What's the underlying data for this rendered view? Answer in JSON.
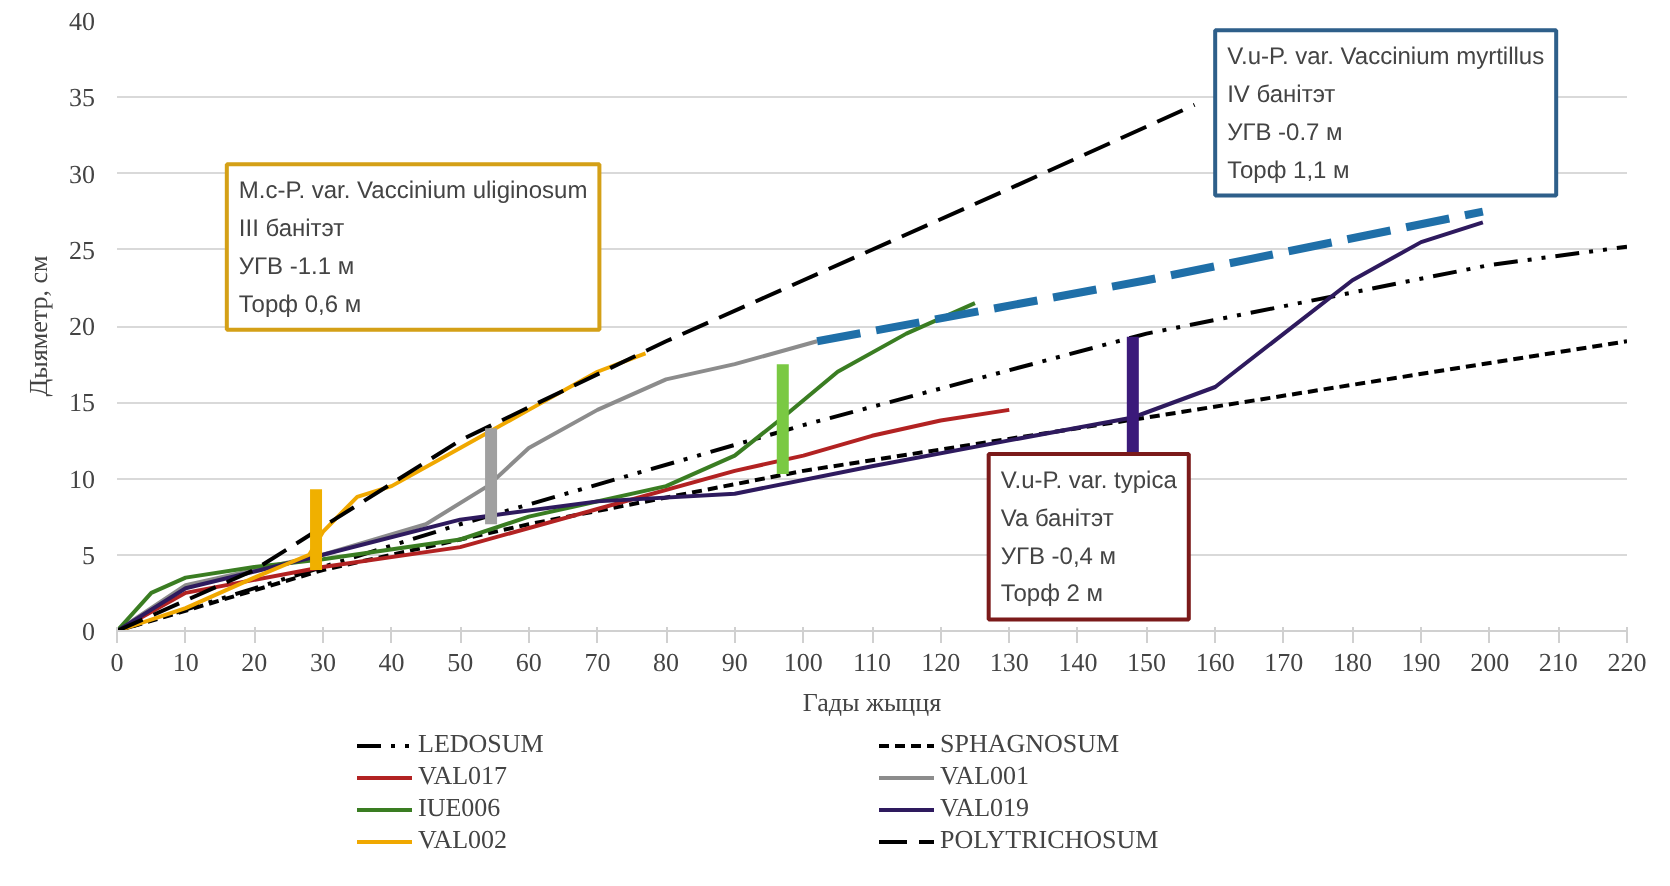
{
  "chart_data": {
    "type": "line",
    "xlabel": "Гады жыцця",
    "ylabel": "Дыяметр, см",
    "xlim": [
      0,
      220
    ],
    "xticks": [
      0,
      10,
      20,
      30,
      40,
      50,
      60,
      70,
      80,
      90,
      100,
      110,
      120,
      130,
      140,
      150,
      160,
      170,
      180,
      190,
      200,
      210,
      220
    ],
    "ylim": [
      0,
      40
    ],
    "yticks": [
      0,
      5,
      10,
      15,
      20,
      25,
      30,
      35,
      40
    ],
    "grid": "y",
    "legend": "bottom",
    "series": [
      {
        "name": "LEDOSUM",
        "color": "#000000",
        "line_style": "dashdot",
        "x": [
          0,
          50,
          100,
          150,
          200,
          220
        ],
        "values": [
          0,
          7,
          13.5,
          19.5,
          24,
          25.2
        ]
      },
      {
        "name": "SPHAGNOSUM",
        "color": "#000000",
        "line_style": "dotted",
        "x": [
          0,
          30,
          60,
          100,
          150,
          220
        ],
        "values": [
          0,
          4,
          7,
          10.5,
          14,
          19
        ]
      },
      {
        "name": "VAL017",
        "color": "#b22222",
        "x": [
          0,
          10,
          30,
          50,
          70,
          90,
          100,
          110,
          120,
          130
        ],
        "values": [
          0,
          2.5,
          4.2,
          5.5,
          8,
          10.5,
          11.5,
          12.8,
          13.8,
          14.5
        ]
      },
      {
        "name": "VAL001",
        "color": "#8c8c8c",
        "x": [
          0,
          10,
          30,
          45,
          54,
          60,
          70,
          80,
          90,
          102
        ],
        "values": [
          0,
          3,
          5,
          7,
          9.5,
          12,
          14.5,
          16.5,
          17.5,
          19
        ]
      },
      {
        "name": "IUE006",
        "color": "#3a7d22",
        "x": [
          0,
          5,
          10,
          20,
          30,
          50,
          60,
          80,
          90,
          97,
          105,
          115,
          125
        ],
        "values": [
          0,
          2.5,
          3.5,
          4.2,
          4.7,
          6,
          7.5,
          9.5,
          11.5,
          14,
          17,
          19.5,
          21.5
        ]
      },
      {
        "name": "VAL019",
        "color": "#2e1a5e",
        "x": [
          0,
          10,
          30,
          50,
          70,
          90,
          110,
          130,
          148,
          160,
          170,
          180,
          190,
          199
        ],
        "values": [
          0,
          2.8,
          5,
          7.3,
          8.5,
          9,
          10.8,
          12.5,
          14,
          16,
          19.5,
          23,
          25.5,
          26.8
        ]
      },
      {
        "name": "VAL002",
        "color": "#f0a800",
        "x": [
          0,
          10,
          20,
          28,
          30,
          35,
          40,
          50,
          60,
          70,
          77
        ],
        "values": [
          0,
          1.5,
          3.5,
          5,
          6.5,
          8.8,
          9.5,
          12,
          14.5,
          17,
          18.2
        ]
      },
      {
        "name": "POLYTRICHOSUM",
        "color": "#000000",
        "line_style": "dashed",
        "x": [
          0,
          20,
          50,
          80,
          100,
          130,
          157
        ],
        "values": [
          0,
          4,
          12.5,
          19,
          23,
          29,
          34.5
        ]
      },
      {
        "color": "#1f6fa8",
        "line_style": "dashed",
        "x": [
          102,
          150,
          199
        ],
        "values": [
          19,
          23,
          27.5
        ]
      },
      {
        "color": "#f0b000",
        "x": [
          29,
          29
        ],
        "values": [
          4,
          9.3
        ]
      },
      {
        "color": "#a0a0a0",
        "x": [
          54.5,
          54.5
        ],
        "values": [
          7,
          13.3
        ]
      },
      {
        "color": "#7ac943",
        "x": [
          97,
          97
        ],
        "values": [
          10.3,
          17.5
        ]
      },
      {
        "color": "#3b1a7a",
        "x": [
          148,
          148
        ],
        "values": [
          11.7,
          19.3
        ]
      }
    ],
    "annotations": [
      "M.c-P. var. Vaccinium uliginosum\nIII банітэт\nУГВ -1.1 м\nТорф 0,6 м",
      "V.u-P. var. Vaccinium myrtillus\nIV банітэт\nУГВ -0.7 м\nТорф 1,1 м",
      "V.u-P. var. typica\nVa банітэт\nУГВ -0,4 м\nТорф 2 м"
    ]
  }
}
